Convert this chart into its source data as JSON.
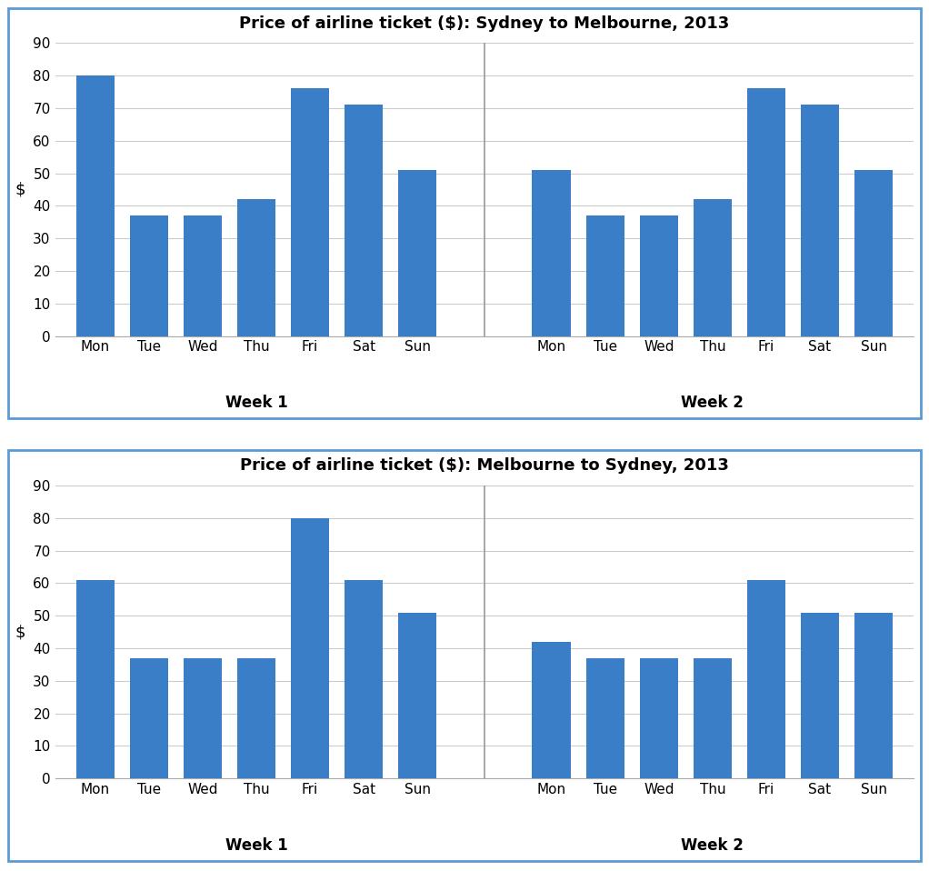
{
  "chart1_title": "Price of airline ticket ($): Sydney to Melbourne, 2013",
  "chart2_title": "Price of airline ticket ($): Melbourne to Sydney, 2013",
  "days": [
    "Mon",
    "Tue",
    "Wed",
    "Thu",
    "Fri",
    "Sat",
    "Sun"
  ],
  "week1_label": "Week 1",
  "week2_label": "Week 2",
  "ylabel": "$",
  "chart1_week1": [
    80,
    37,
    37,
    42,
    76,
    71,
    51
  ],
  "chart1_week2": [
    51,
    37,
    37,
    42,
    76,
    71,
    51
  ],
  "chart2_week1": [
    61,
    37,
    37,
    37,
    80,
    61,
    51
  ],
  "chart2_week2": [
    42,
    37,
    37,
    37,
    61,
    51,
    51
  ],
  "bar_color": "#3a7ec8",
  "divider_color": "#999999",
  "background_color": "#ffffff",
  "border_color": "#5b9bd5",
  "ylim": [
    0,
    90
  ],
  "yticks": [
    0,
    10,
    20,
    30,
    40,
    50,
    60,
    70,
    80,
    90
  ],
  "title_fontsize": 13,
  "ylabel_fontsize": 13,
  "tick_fontsize": 11,
  "week_label_fontsize": 12,
  "fig_bg": "#ffffff"
}
